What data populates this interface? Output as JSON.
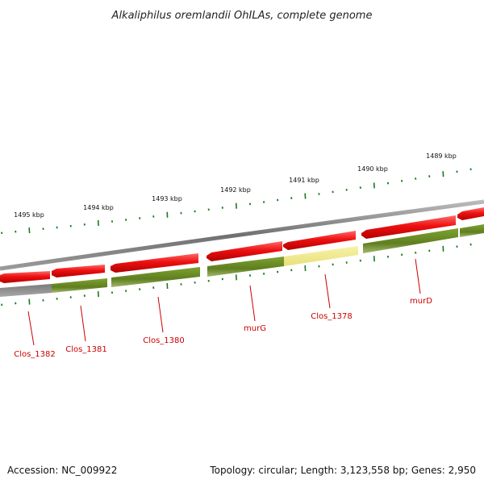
{
  "title": "Alkaliphilus oremlandii OhILAs, complete genome",
  "footer": {
    "accession": "Accession: NC_009922",
    "summary": "Topology: circular; Length: 3,123,558 bp; Genes: 2,950"
  },
  "ticks": [
    "1495 kbp",
    "1494 kbp",
    "1493 kbp",
    "1492 kbp",
    "1491 kbp",
    "1490 kbp",
    "1489 kbp"
  ],
  "gene_labels": [
    "Clos_1382",
    "Clos_1381",
    "Clos_1380",
    "murG",
    "Clos_1378",
    "murD"
  ],
  "colors": {
    "backbone": "#808080",
    "cds": "#ee1111",
    "gene_track": "#6b8e23",
    "highlight": "#f2ec96",
    "gray_gene": "#666666",
    "tick": "#1a7a1a",
    "label": "#cc0000"
  }
}
